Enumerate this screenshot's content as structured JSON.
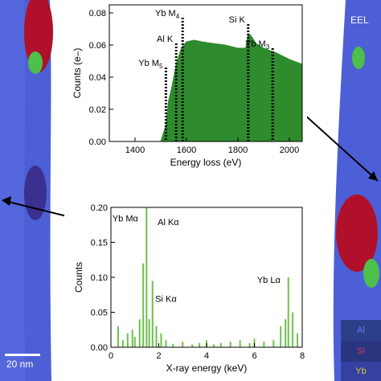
{
  "overlay": {
    "scale_bar_label": "20 nm",
    "eels_label": "EEL",
    "legend": {
      "al": "Al",
      "si": "Si",
      "yb": "Yb"
    }
  },
  "colors": {
    "tube_blue": "#4d5fd6",
    "particle_red": "#b0102a",
    "particle_green": "#4cc04a",
    "eels_fill": "#2e8b2e",
    "edx_line": "#6cc24a"
  },
  "chart_data": [
    {
      "type": "area",
      "xlabel": "Energy loss (eV)",
      "ylabel": "Counts (e–)",
      "xlim": [
        1300,
        2050
      ],
      "ylim": [
        0,
        0.085
      ],
      "xticks": [
        "1400",
        "1600",
        "1800",
        "2000"
      ],
      "yticks": [
        "0.00",
        "0.02",
        "0.04",
        "0.06",
        "0.08"
      ],
      "series": [
        {
          "x": [
            1300,
            1400,
            1500,
            1520,
            1530,
            1545,
            1560,
            1580,
            1600,
            1630,
            1660,
            1700,
            1750,
            1800,
            1830,
            1840,
            1850,
            1870,
            1900,
            1950,
            2000,
            2050
          ],
          "values": [
            0.0,
            0.0,
            0.0,
            0.01,
            0.025,
            0.035,
            0.048,
            0.058,
            0.062,
            0.063,
            0.062,
            0.061,
            0.06,
            0.058,
            0.058,
            0.067,
            0.066,
            0.061,
            0.058,
            0.055,
            0.051,
            0.048
          ]
        }
      ],
      "annotations": [
        {
          "main": "Yb M",
          "sub": "5",
          "x": 1520,
          "y": 0.046
        },
        {
          "main": "Al K",
          "sub": "",
          "x": 1560,
          "y": 0.061
        },
        {
          "main": "Yb M",
          "sub": "4",
          "x": 1585,
          "y": 0.077
        },
        {
          "main": "Si K",
          "sub": "",
          "x": 1840,
          "y": 0.073
        },
        {
          "main": "Yb M",
          "sub": "3",
          "x": 1935,
          "y": 0.058
        }
      ]
    },
    {
      "type": "line",
      "xlabel": "X-ray energy (keV)",
      "ylabel": "Counts",
      "xlim": [
        0,
        8
      ],
      "ylim": [
        0,
        0.2
      ],
      "xticks": [
        "0",
        "2",
        "4",
        "6",
        "8"
      ],
      "yticks": [
        "0.00",
        "0.05",
        "0.10",
        "0.15",
        "0.20"
      ],
      "series": [
        {
          "x": [
            0.3,
            0.5,
            0.7,
            0.9,
            1.0,
            1.2,
            1.35,
            1.49,
            1.6,
            1.74,
            1.9,
            2.1,
            2.3,
            2.6,
            3.0,
            3.4,
            3.7,
            4.0,
            4.3,
            4.6,
            5.0,
            5.4,
            5.8,
            6.0,
            6.4,
            6.8,
            7.1,
            7.3,
            7.42,
            7.6,
            7.8
          ],
          "values": [
            0.03,
            0.01,
            0.02,
            0.025,
            0.015,
            0.04,
            0.12,
            0.2,
            0.04,
            0.095,
            0.03,
            0.02,
            0.01,
            0.005,
            0.008,
            0.004,
            0.006,
            0.01,
            0.004,
            0.006,
            0.008,
            0.01,
            0.006,
            0.012,
            0.008,
            0.01,
            0.03,
            0.04,
            0.1,
            0.05,
            0.02
          ]
        }
      ],
      "annotations": [
        {
          "main": "Yb M",
          "greek": "α",
          "x": 0.6,
          "y": 0.18
        },
        {
          "main": "Al K",
          "greek": "α",
          "x": 2.4,
          "y": 0.175
        },
        {
          "main": "Si K",
          "greek": "α",
          "x": 2.3,
          "y": 0.065
        },
        {
          "main": "Yb L",
          "greek": "α",
          "x": 6.6,
          "y": 0.092
        }
      ]
    }
  ]
}
